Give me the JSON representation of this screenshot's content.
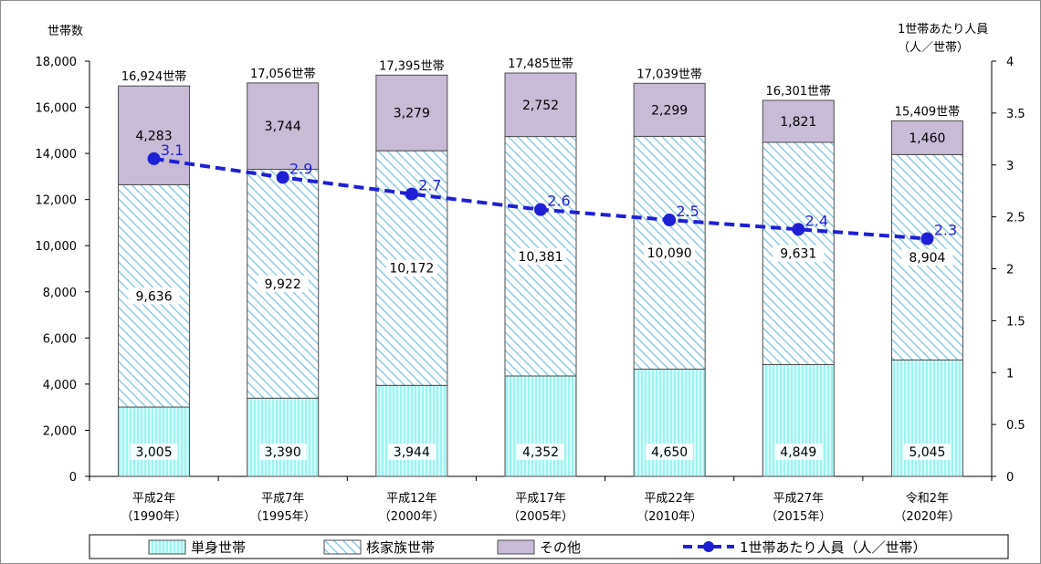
{
  "chart_data": {
    "type": "bar",
    "stacked": true,
    "y_left_label": "世帯数",
    "y_right_label_line1": "1世帯あたり人員",
    "y_right_label_line2": "（人／世帯）",
    "y_left_ticks": [
      "0",
      "2,000",
      "4,000",
      "6,000",
      "8,000",
      "10,000",
      "12,000",
      "14,000",
      "16,000",
      "18,000"
    ],
    "y_right_ticks": [
      "0",
      "0.5",
      "1",
      "1.5",
      "2",
      "2.5",
      "3",
      "3.5",
      "4"
    ],
    "ylim_left": [
      0,
      18000
    ],
    "ylim_right": [
      0,
      4
    ],
    "categories": [
      {
        "line1": "平成2年",
        "line2": "（1990年）"
      },
      {
        "line1": "平成7年",
        "line2": "（1995年）"
      },
      {
        "line1": "平成12年",
        "line2": "（2000年）"
      },
      {
        "line1": "平成17年",
        "line2": "（2005年）"
      },
      {
        "line1": "平成22年",
        "line2": "（2010年）"
      },
      {
        "line1": "平成27年",
        "line2": "（2015年）"
      },
      {
        "line1": "令和2年",
        "line2": "（2020年）"
      }
    ],
    "series": [
      {
        "name": "単身世帯",
        "values": [
          3005,
          3390,
          3944,
          4352,
          4650,
          4849,
          5045
        ],
        "labels": [
          "3,005",
          "3,390",
          "3,944",
          "4,352",
          "4,650",
          "4,849",
          "5,045"
        ],
        "color": "#9af5f0",
        "pattern": "vertical-lines"
      },
      {
        "name": "核家族世帯",
        "values": [
          9636,
          9922,
          10172,
          10381,
          10090,
          9631,
          8904
        ],
        "labels": [
          "9,636",
          "9,922",
          "10,172",
          "10,381",
          "10,090",
          "9,631",
          "8,904"
        ],
        "color": "#bfe3ee",
        "pattern": "diagonal-hatch"
      },
      {
        "name": "その他",
        "values": [
          4283,
          3744,
          3279,
          2752,
          2299,
          1821,
          1460
        ],
        "labels": [
          "4,283",
          "3,744",
          "3,279",
          "2,752",
          "2,299",
          "1,821",
          "1,460"
        ],
        "color": "#c7bbd6",
        "pattern": "solid"
      }
    ],
    "totals": [
      "16,924世帯",
      "17,056世帯",
      "17,395世帯",
      "17,485世帯",
      "17,039世帯",
      "16,301世帯",
      "15,409世帯"
    ],
    "line_series": {
      "name": "1世帯あたり人員（人／世帯）",
      "axis": "right",
      "values": [
        3.06,
        2.88,
        2.72,
        2.57,
        2.47,
        2.38,
        2.29
      ],
      "labels": [
        "3.1",
        "2.9",
        "2.7",
        "2.6",
        "2.5",
        "2.4",
        "2.3"
      ],
      "color": "#1f1fd6",
      "style": "dashed-with-markers"
    },
    "legend_position": "bottom"
  }
}
